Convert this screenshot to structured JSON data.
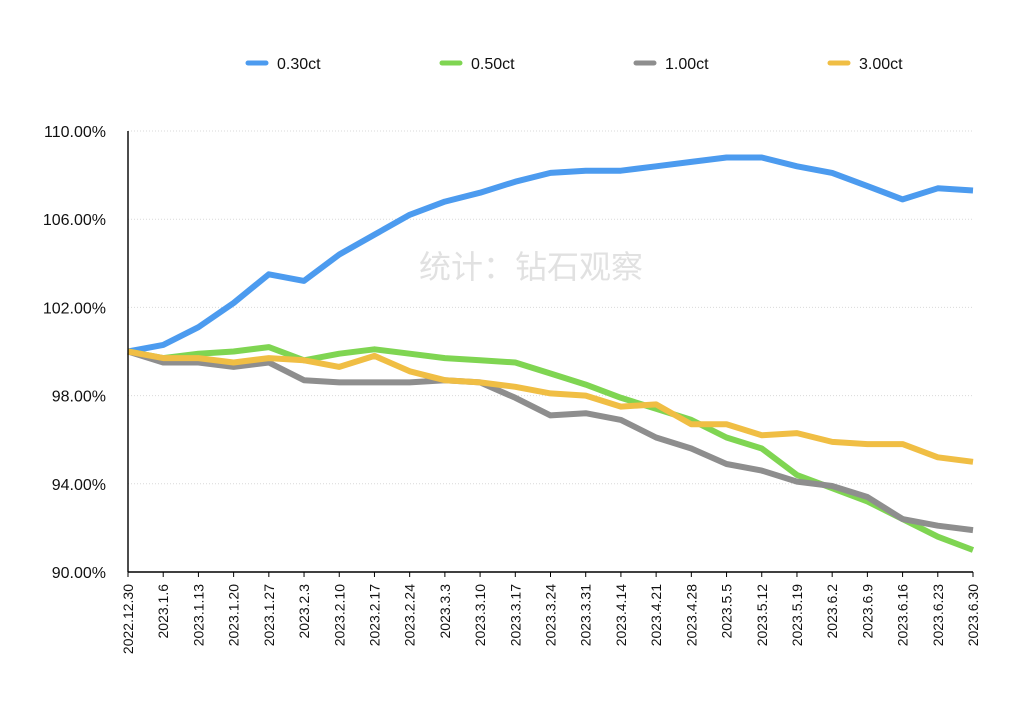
{
  "watermark": "统计：钻石观察",
  "chart_data": {
    "type": "line",
    "title": "",
    "xlabel": "",
    "ylabel": "",
    "ylim": [
      90,
      110
    ],
    "yticks": [
      90,
      94,
      98,
      102,
      106,
      110
    ],
    "ytick_labels": [
      "90.00%",
      "94.00%",
      "98.00%",
      "102.00%",
      "106.00%",
      "110.00%"
    ],
    "grid": true,
    "legend_position": "top",
    "categories": [
      "2022.12.30",
      "2023.1.6",
      "2023.1.13",
      "2023.1.20",
      "2023.1.27",
      "2023.2.3",
      "2023.2.10",
      "2023.2.17",
      "2023.2.24",
      "2023.3.3",
      "2023.3.10",
      "2023.3.17",
      "2023.3.24",
      "2023.3.31",
      "2023.4.14",
      "2023.4.21",
      "2023.4.28",
      "2023.5.5",
      "2023.5.12",
      "2023.5.19",
      "2023.6.2",
      "2023.6.9",
      "2023.6.16",
      "2023.6.23",
      "2023.6.30"
    ],
    "series": [
      {
        "name": "0.30ct",
        "color": "#4c9bef",
        "values": [
          100.0,
          100.3,
          101.1,
          102.2,
          103.5,
          103.2,
          104.4,
          105.3,
          106.2,
          106.8,
          107.2,
          107.7,
          108.1,
          108.2,
          108.2,
          108.4,
          108.6,
          108.8,
          108.8,
          108.4,
          108.1,
          107.5,
          106.9,
          107.4,
          107.3
        ]
      },
      {
        "name": "0.50ct",
        "color": "#7fd552",
        "values": [
          100.0,
          99.7,
          99.9,
          100.0,
          100.2,
          99.6,
          99.9,
          100.1,
          99.9,
          99.7,
          99.6,
          99.5,
          99.0,
          98.5,
          97.9,
          97.4,
          96.9,
          96.1,
          95.6,
          94.4,
          93.8,
          93.2,
          92.4,
          91.6,
          91.0
        ]
      },
      {
        "name": "1.00ct",
        "color": "#8e8e8e",
        "values": [
          100.0,
          99.5,
          99.5,
          99.3,
          99.5,
          98.7,
          98.6,
          98.6,
          98.6,
          98.7,
          98.6,
          97.9,
          97.1,
          97.2,
          96.9,
          96.1,
          95.6,
          94.9,
          94.6,
          94.1,
          93.9,
          93.4,
          92.4,
          92.1,
          91.9
        ]
      },
      {
        "name": "3.00ct",
        "color": "#f0be44",
        "values": [
          100.0,
          99.7,
          99.7,
          99.5,
          99.7,
          99.6,
          99.3,
          99.8,
          99.1,
          98.7,
          98.6,
          98.4,
          98.1,
          98.0,
          97.5,
          97.6,
          96.7,
          96.7,
          96.2,
          96.3,
          95.9,
          95.8,
          95.8,
          95.2,
          95.0
        ]
      }
    ]
  }
}
